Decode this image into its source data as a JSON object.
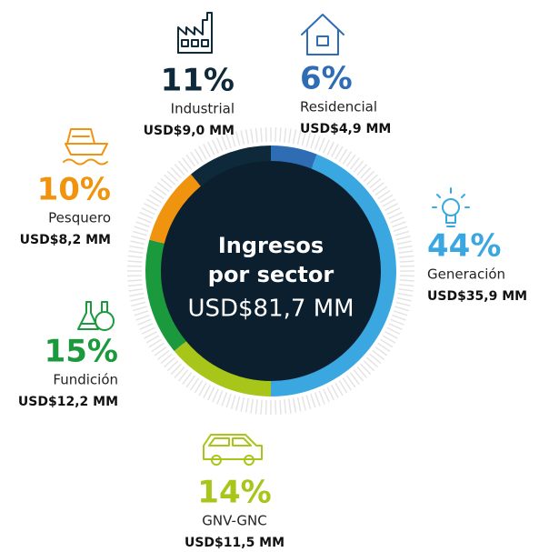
{
  "chart_data": {
    "type": "donut",
    "title_lines": [
      "Ingresos",
      "por sector"
    ],
    "total_label": "USD$81,7 MM",
    "categories": [
      "Residencial",
      "Generación",
      "GNV-GNC",
      "Fundición",
      "Pesquero",
      "Industrial"
    ],
    "values": [
      6,
      44,
      14,
      15,
      10,
      11
    ],
    "value_labels": [
      "6%",
      "44%",
      "14%",
      "15%",
      "10%",
      "11%"
    ],
    "amounts": [
      "USD$4,9 MM",
      "USD$35,9 MM",
      "USD$11,5 MM",
      "USD$12,2 MM",
      "USD$8,2 MM",
      "USD$9,0 MM"
    ],
    "colors": [
      "#2e6db4",
      "#3aa7e0",
      "#a8c51a",
      "#1a9a3c",
      "#f0940f",
      "#0e2a3a"
    ]
  }
}
